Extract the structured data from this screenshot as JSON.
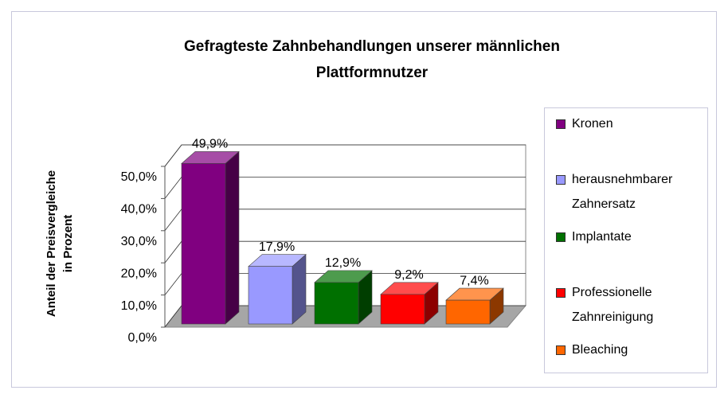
{
  "chart_data": {
    "type": "bar3d",
    "title": "Gefragteste Zahnbehandlungen unserer männlichen Plattformnutzer",
    "ylabel": "Anteil der Preisvergleiche in Prozent",
    "series": [
      {
        "name": "Kronen",
        "color": "#800080",
        "values": [
          49.9
        ],
        "value_labels": [
          "49,9%"
        ]
      },
      {
        "name": "herausnehmbarer Zahnersatz",
        "color": "#9999ff",
        "values": [
          17.9
        ],
        "value_labels": [
          "17,9%"
        ]
      },
      {
        "name": "Implantate",
        "color": "#007000",
        "values": [
          12.9
        ],
        "value_labels": [
          "12,9%"
        ]
      },
      {
        "name": "Professionelle Zahnreinigung",
        "color": "#ff0000",
        "values": [
          9.2
        ],
        "value_labels": [
          "9,2%"
        ]
      },
      {
        "name": "Bleaching",
        "color": "#ff6600",
        "values": [
          7.4
        ],
        "value_labels": [
          "7,4%"
        ]
      }
    ],
    "ylim": [
      0,
      50
    ],
    "yticks": [
      {
        "value": 0,
        "label": "0,0%"
      },
      {
        "value": 10,
        "label": "10,0%"
      },
      {
        "value": 20,
        "label": "20,0%"
      },
      {
        "value": 30,
        "label": "30,0%"
      },
      {
        "value": 40,
        "label": "40,0%"
      },
      {
        "value": 50,
        "label": "50,0%"
      }
    ],
    "grid": true,
    "legend": "right"
  }
}
